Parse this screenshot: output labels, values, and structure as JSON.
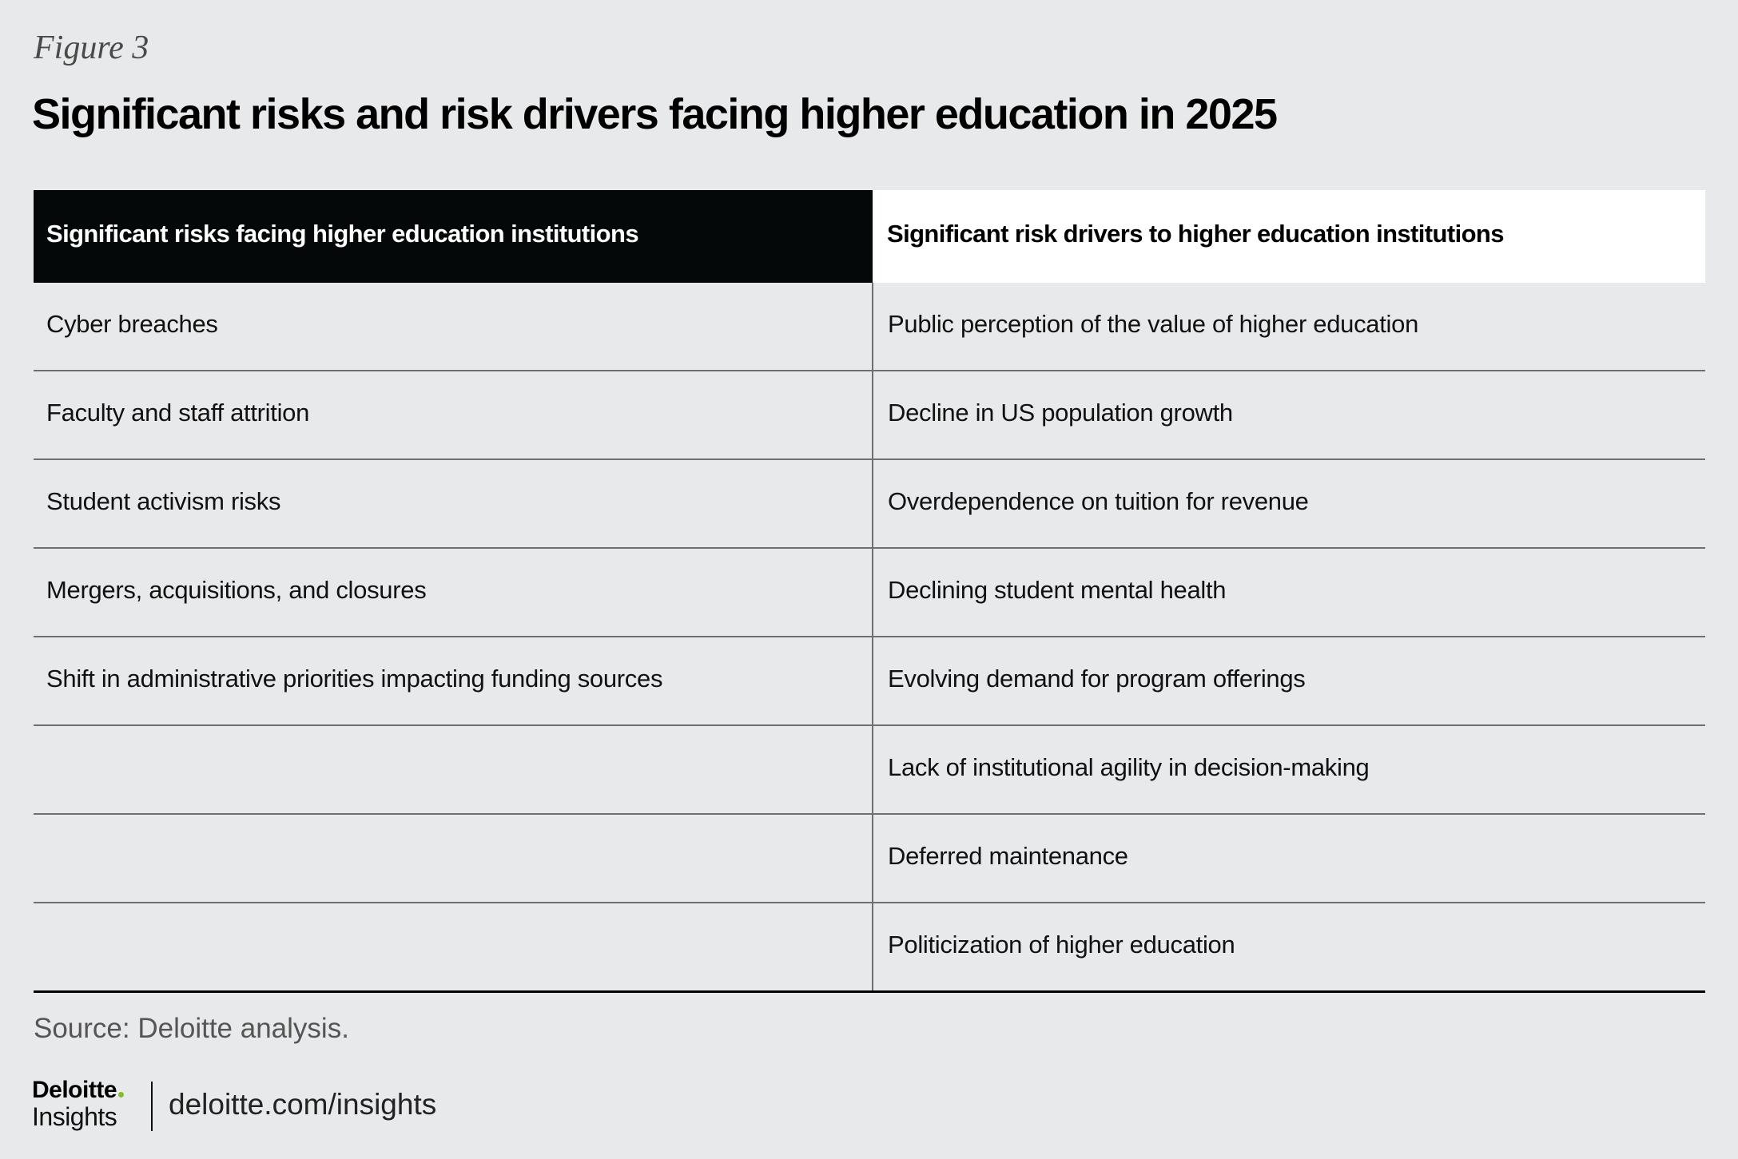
{
  "figure_label": "Figure 3",
  "title": "Significant risks and risk drivers facing higher education in 2025",
  "table": {
    "headers": [
      "Significant risks facing higher education institutions",
      "Significant risk drivers to higher education institutions"
    ],
    "rows": [
      [
        "Cyber breaches",
        "Public perception of the value of higher education"
      ],
      [
        "Faculty and staff attrition",
        "Decline in US population growth"
      ],
      [
        "Student activism risks",
        "Overdependence on tuition for revenue"
      ],
      [
        "Mergers, acquisitions, and closures",
        "Declining student mental health"
      ],
      [
        "Shift in administrative priorities impacting funding sources",
        "Evolving demand for program offerings"
      ],
      [
        "",
        "Lack of institutional agility in decision-making"
      ],
      [
        "",
        "Deferred maintenance"
      ],
      [
        "",
        "Politicization of higher education"
      ]
    ]
  },
  "source": "Source: Deloitte analysis.",
  "footer": {
    "brand_main": "Deloitte",
    "brand_sub": "Insights",
    "link_text": "deloitte.com/insights"
  },
  "colors": {
    "background": "#e8e9eb",
    "header_dark": "#050809",
    "header_light": "#ffffff",
    "brand_dot": "#86bc25"
  }
}
